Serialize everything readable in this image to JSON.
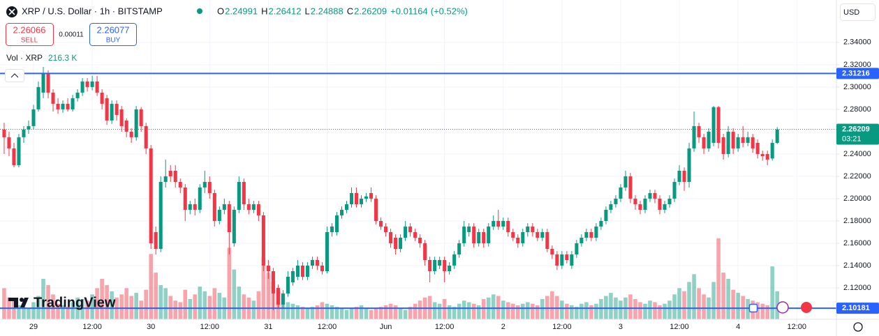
{
  "chart_data": {
    "type": "candlestick",
    "title": "XRP / U.S. Dollar · 1h · BITSTAMP",
    "ohlc_labels": [
      "O",
      "H",
      "L",
      "C"
    ],
    "change": "+0.01164",
    "change_pct": "(+0.52%)",
    "sell_price": 2.26066,
    "sell_label": "SELL",
    "spread": 0.00011,
    "buy_price": 2.26077,
    "buy_label": "BUY",
    "volume_title": "Vol · XRP",
    "volume_value": "216.3 K",
    "currency": "USD",
    "watermark": "TradingView",
    "countdown": "03:21",
    "up_color": "#089981",
    "down_color": "#f23645",
    "ylim": [
      2.0919,
      2.378
    ],
    "yticks": [
      {
        "value": 2.34,
        "label": "2.34000"
      },
      {
        "value": 2.32,
        "label": "2.32000"
      },
      {
        "value": 2.3,
        "label": "2.30000"
      },
      {
        "value": 2.28,
        "label": "2.28000"
      },
      {
        "value": 2.24,
        "label": "2.24000"
      },
      {
        "value": 2.22,
        "label": "2.22000"
      },
      {
        "value": 2.2,
        "label": "2.20000"
      },
      {
        "value": 2.18,
        "label": "2.18000"
      },
      {
        "value": 2.16,
        "label": "2.16000"
      },
      {
        "value": 2.14,
        "label": "2.14000"
      },
      {
        "value": 2.12,
        "label": "2.12000"
      }
    ],
    "xlim": [
      -0.85,
      170.1
    ],
    "xticks": [
      {
        "value": 6,
        "label": "29"
      },
      {
        "value": 18,
        "label": "12:00"
      },
      {
        "value": 30,
        "label": "30"
      },
      {
        "value": 42,
        "label": "12:00"
      },
      {
        "value": 54,
        "label": "31"
      },
      {
        "value": 66,
        "label": "12:00"
      },
      {
        "value": 78,
        "label": "Jun"
      },
      {
        "value": 90,
        "label": "12:00"
      },
      {
        "value": 102,
        "label": "2"
      },
      {
        "value": 114,
        "label": "12:00"
      },
      {
        "value": 126,
        "label": "3"
      },
      {
        "value": 138,
        "label": "12:00"
      },
      {
        "value": 150,
        "label": "4"
      },
      {
        "value": 162,
        "label": "12:00"
      }
    ],
    "grid": true,
    "price_lines": [
      {
        "value": 2.31216,
        "label": "2.31216",
        "color": "#2962ff"
      },
      {
        "value": 2.10181,
        "label": "2.10181",
        "color": "#2962ff"
      }
    ],
    "open": [
      2.262,
      2.255,
      2.245,
      2.23,
      2.255,
      2.262,
      2.265,
      2.28,
      2.295,
      2.312,
      2.295,
      2.285,
      2.28,
      2.285,
      2.28,
      2.29,
      2.295,
      2.305,
      2.3,
      2.305,
      2.295,
      2.29,
      2.27,
      2.285,
      2.28,
      2.27,
      2.26,
      2.255,
      2.28,
      2.265,
      2.245,
      2.17,
      2.155,
      2.215,
      2.225,
      2.225,
      2.215,
      2.21,
      2.19,
      2.195,
      2.19,
      2.21,
      2.215,
      2.205,
      2.18,
      2.19,
      2.195,
      2.16,
      2.19,
      2.215,
      2.195,
      2.19,
      2.195,
      2.185,
      2.14,
      2.135,
      2.12,
      2.105,
      2.115,
      2.125,
      2.13,
      2.14,
      2.13,
      2.14,
      2.145,
      2.14,
      2.135,
      2.17,
      2.17,
      2.185,
      2.19,
      2.195,
      2.205,
      2.195,
      2.2,
      2.205,
      2.2,
      2.18,
      2.175,
      2.17,
      2.165,
      2.155,
      2.165,
      2.175,
      2.17,
      2.165,
      2.16,
      2.145,
      2.135,
      2.14,
      2.145,
      2.135,
      2.14,
      2.15,
      2.16,
      2.17,
      2.175,
      2.16,
      2.17,
      2.16,
      2.175,
      2.18,
      2.175,
      2.18,
      2.17,
      2.165,
      2.16,
      2.17,
      2.175,
      2.17,
      2.165,
      2.17,
      2.155,
      2.15,
      2.14,
      2.15,
      2.14,
      2.15,
      2.16,
      2.165,
      2.17,
      2.165,
      2.175,
      2.18,
      2.19,
      2.195,
      2.2,
      2.21,
      2.22,
      2.2,
      2.195,
      2.19,
      2.2,
      2.205,
      2.2,
      2.19,
      2.195,
      2.2,
      2.215,
      2.225,
      2.215,
      2.245,
      2.265,
      2.255,
      2.245,
      2.25,
      2.282,
      2.255,
      2.24,
      2.26,
      2.245,
      2.255,
      2.25,
      2.255,
      2.25,
      2.24,
      2.24,
      2.236,
      2.24991
    ],
    "high": [
      2.268,
      2.26,
      2.25,
      2.258,
      2.265,
      2.27,
      2.284,
      2.305,
      2.318,
      2.315,
      2.298,
      2.29,
      2.288,
      2.29,
      2.293,
      2.298,
      2.308,
      2.308,
      2.31,
      2.31,
      2.298,
      2.293,
      2.288,
      2.288,
      2.283,
      2.272,
      2.263,
      2.283,
      2.282,
      2.268,
      2.248,
      2.175,
      2.22,
      2.235,
      2.23,
      2.23,
      2.218,
      2.213,
      2.198,
      2.2,
      2.213,
      2.225,
      2.22,
      2.208,
      2.193,
      2.2,
      2.198,
      2.193,
      2.22,
      2.218,
      2.2,
      2.198,
      2.198,
      2.188,
      2.145,
      2.138,
      2.123,
      2.118,
      2.135,
      2.138,
      2.145,
      2.143,
      2.143,
      2.148,
      2.148,
      2.143,
      2.175,
      2.178,
      2.188,
      2.193,
      2.198,
      2.21,
      2.21,
      2.203,
      2.205,
      2.21,
      2.203,
      2.183,
      2.178,
      2.173,
      2.168,
      2.168,
      2.18,
      2.178,
      2.173,
      2.168,
      2.163,
      2.148,
      2.148,
      2.148,
      2.148,
      2.143,
      2.153,
      2.163,
      2.18,
      2.178,
      2.178,
      2.173,
      2.173,
      2.178,
      2.185,
      2.19,
      2.183,
      2.183,
      2.173,
      2.168,
      2.173,
      2.178,
      2.178,
      2.173,
      2.173,
      2.173,
      2.158,
      2.153,
      2.153,
      2.153,
      2.153,
      2.163,
      2.168,
      2.173,
      2.173,
      2.178,
      2.183,
      2.193,
      2.198,
      2.203,
      2.213,
      2.225,
      2.223,
      2.203,
      2.198,
      2.203,
      2.208,
      2.208,
      2.203,
      2.198,
      2.203,
      2.218,
      2.23,
      2.228,
      2.25,
      2.278,
      2.268,
      2.258,
      2.263,
      2.283,
      2.283,
      2.258,
      2.265,
      2.263,
      2.258,
      2.265,
      2.26,
      2.258,
      2.253,
      2.243,
      2.243,
      2.253,
      2.26412
    ],
    "low": [
      2.24,
      2.238,
      2.228,
      2.228,
      2.25,
      2.258,
      2.262,
      2.278,
      2.29,
      2.29,
      2.278,
      2.276,
      2.277,
      2.278,
      2.278,
      2.287,
      2.292,
      2.296,
      2.297,
      2.292,
      2.28,
      2.266,
      2.267,
      2.27,
      2.26,
      2.255,
      2.25,
      2.252,
      2.26,
      2.24,
      2.155,
      2.15,
      2.152,
      2.21,
      2.215,
      2.21,
      2.205,
      2.18,
      2.186,
      2.185,
      2.187,
      2.205,
      2.2,
      2.175,
      2.177,
      2.186,
      2.15,
      2.157,
      2.187,
      2.19,
      2.186,
      2.187,
      2.18,
      2.135,
      2.128,
      2.1,
      2.102,
      2.102,
      2.112,
      2.122,
      2.127,
      2.127,
      2.127,
      2.137,
      2.136,
      2.132,
      2.133,
      2.166,
      2.167,
      2.182,
      2.187,
      2.192,
      2.192,
      2.192,
      2.197,
      2.197,
      2.177,
      2.172,
      2.166,
      2.156,
      2.15,
      2.152,
      2.162,
      2.166,
      2.162,
      2.156,
      2.14,
      2.125,
      2.132,
      2.137,
      2.125,
      2.132,
      2.137,
      2.147,
      2.157,
      2.166,
      2.156,
      2.157,
      2.156,
      2.157,
      2.172,
      2.172,
      2.172,
      2.166,
      2.162,
      2.156,
      2.157,
      2.166,
      2.166,
      2.162,
      2.162,
      2.152,
      2.146,
      2.136,
      2.137,
      2.142,
      2.137,
      2.147,
      2.157,
      2.162,
      2.162,
      2.162,
      2.172,
      2.177,
      2.187,
      2.192,
      2.197,
      2.207,
      2.196,
      2.19,
      2.186,
      2.187,
      2.197,
      2.196,
      2.186,
      2.187,
      2.192,
      2.197,
      2.212,
      2.207,
      2.21,
      2.242,
      2.25,
      2.24,
      2.242,
      2.247,
      2.245,
      2.235,
      2.237,
      2.24,
      2.242,
      2.246,
      2.247,
      2.241,
      2.236,
      2.234,
      2.23,
      2.234,
      2.24888
    ],
    "close": [
      2.255,
      2.245,
      2.23,
      2.255,
      2.262,
      2.265,
      2.28,
      2.3,
      2.312,
      2.295,
      2.285,
      2.28,
      2.285,
      2.28,
      2.29,
      2.295,
      2.305,
      2.3,
      2.305,
      2.295,
      2.285,
      2.27,
      2.285,
      2.275,
      2.265,
      2.26,
      2.255,
      2.28,
      2.265,
      2.245,
      2.16,
      2.155,
      2.215,
      2.22,
      2.22,
      2.215,
      2.21,
      2.19,
      2.195,
      2.19,
      2.21,
      2.215,
      2.205,
      2.18,
      2.19,
      2.195,
      2.17,
      2.19,
      2.215,
      2.195,
      2.19,
      2.195,
      2.185,
      2.14,
      2.135,
      2.115,
      2.105,
      2.115,
      2.13,
      2.135,
      2.14,
      2.13,
      2.14,
      2.145,
      2.14,
      2.135,
      2.17,
      2.175,
      2.185,
      2.19,
      2.195,
      2.205,
      2.195,
      2.2,
      2.202,
      2.2,
      2.18,
      2.175,
      2.17,
      2.16,
      2.155,
      2.165,
      2.175,
      2.17,
      2.165,
      2.16,
      2.145,
      2.135,
      2.145,
      2.145,
      2.135,
      2.14,
      2.15,
      2.16,
      2.175,
      2.175,
      2.16,
      2.17,
      2.16,
      2.175,
      2.18,
      2.175,
      2.18,
      2.17,
      2.165,
      2.16,
      2.17,
      2.175,
      2.17,
      2.165,
      2.17,
      2.155,
      2.15,
      2.14,
      2.15,
      2.145,
      2.15,
      2.16,
      2.165,
      2.17,
      2.165,
      2.175,
      2.18,
      2.19,
      2.195,
      2.2,
      2.21,
      2.22,
      2.2,
      2.195,
      2.19,
      2.2,
      2.205,
      2.2,
      2.19,
      2.195,
      2.2,
      2.215,
      2.225,
      2.215,
      2.245,
      2.265,
      2.255,
      2.245,
      2.26,
      2.282,
      2.25,
      2.24,
      2.26,
      2.245,
      2.255,
      2.25,
      2.255,
      2.245,
      2.24,
      2.238,
      2.235,
      2.25,
      2.26209
    ],
    "volume": [
      200,
      140,
      120,
      90,
      80,
      70,
      110,
      150,
      260,
      220,
      160,
      100,
      90,
      80,
      110,
      140,
      130,
      120,
      160,
      200,
      260,
      220,
      180,
      140,
      160,
      200,
      150,
      170,
      120,
      190,
      420,
      300,
      220,
      200,
      150,
      120,
      110,
      190,
      130,
      160,
      210,
      180,
      150,
      200,
      170,
      140,
      460,
      320,
      210,
      160,
      140,
      120,
      180,
      400,
      300,
      240,
      190,
      150,
      110,
      100,
      90,
      80,
      70,
      80,
      90,
      110,
      100,
      90,
      80,
      70,
      60,
      70,
      80,
      90,
      70,
      60,
      70,
      80,
      90,
      100,
      90,
      70,
      60,
      80,
      100,
      120,
      140,
      150,
      110,
      100,
      130,
      90,
      80,
      100,
      120,
      110,
      100,
      90,
      130,
      140,
      160,
      150,
      120,
      110,
      100,
      90,
      100,
      110,
      100,
      90,
      130,
      150,
      180,
      150,
      120,
      100,
      90,
      80,
      100,
      110,
      90,
      100,
      130,
      150,
      170,
      140,
      120,
      140,
      160,
      130,
      110,
      100,
      120,
      110,
      90,
      100,
      120,
      160,
      200,
      180,
      240,
      290,
      200,
      160,
      140,
      240,
      520,
      300,
      260,
      190,
      170,
      150,
      130,
      120,
      110,
      100,
      90,
      340,
      180
    ]
  }
}
